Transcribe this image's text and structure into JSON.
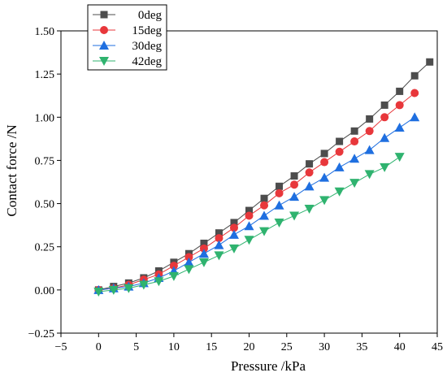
{
  "chart_data": {
    "type": "line",
    "xlabel": "Pressure /kPa",
    "ylabel": "Contact force /N",
    "xlim": [
      -5,
      45
    ],
    "ylim": [
      -0.25,
      1.5
    ],
    "xticks": [
      -5,
      0,
      5,
      10,
      15,
      20,
      25,
      30,
      35,
      40,
      45
    ],
    "yticks": [
      -0.25,
      0.0,
      0.25,
      0.5,
      0.75,
      1.0,
      1.25,
      1.5
    ],
    "ytick_labels": [
      "−0.25",
      "0.00",
      "0.25",
      "0.50",
      "0.75",
      "1.00",
      "1.25",
      "1.50"
    ],
    "xtick_labels": [
      "−5",
      "0",
      "5",
      "10",
      "15",
      "20",
      "25",
      "30",
      "35",
      "40",
      "45"
    ],
    "grid": false,
    "legend_position": "top-left",
    "series": [
      {
        "name": "0deg",
        "color": "#4d4d4d",
        "marker": "square",
        "x": [
          0,
          2,
          4,
          6,
          8,
          10,
          12,
          14,
          16,
          18,
          20,
          22,
          24,
          26,
          28,
          30,
          32,
          34,
          36,
          38,
          40,
          42,
          44
        ],
        "y": [
          0.0,
          0.02,
          0.04,
          0.07,
          0.11,
          0.16,
          0.21,
          0.27,
          0.33,
          0.39,
          0.46,
          0.53,
          0.6,
          0.66,
          0.73,
          0.79,
          0.86,
          0.92,
          0.99,
          1.07,
          1.15,
          1.24,
          1.32
        ]
      },
      {
        "name": "15deg",
        "color": "#e8373b",
        "marker": "circle",
        "x": [
          0,
          2,
          4,
          6,
          8,
          10,
          12,
          14,
          16,
          18,
          20,
          22,
          24,
          26,
          28,
          30,
          32,
          34,
          36,
          38,
          40,
          42
        ],
        "y": [
          0.0,
          0.01,
          0.03,
          0.06,
          0.09,
          0.14,
          0.19,
          0.24,
          0.3,
          0.36,
          0.43,
          0.49,
          0.56,
          0.61,
          0.68,
          0.74,
          0.8,
          0.86,
          0.92,
          1.0,
          1.07,
          1.14
        ]
      },
      {
        "name": "30deg",
        "color": "#1f6fe0",
        "marker": "triangle-up",
        "x": [
          0,
          2,
          4,
          6,
          8,
          10,
          12,
          14,
          16,
          18,
          20,
          22,
          24,
          26,
          28,
          30,
          32,
          34,
          36,
          38,
          40,
          42
        ],
        "y": [
          0.0,
          0.01,
          0.02,
          0.04,
          0.07,
          0.11,
          0.16,
          0.21,
          0.26,
          0.32,
          0.37,
          0.43,
          0.49,
          0.54,
          0.6,
          0.65,
          0.71,
          0.76,
          0.81,
          0.88,
          0.94,
          1.0
        ]
      },
      {
        "name": "42deg",
        "color": "#2fb36f",
        "marker": "triangle-down",
        "x": [
          0,
          2,
          4,
          6,
          8,
          10,
          12,
          14,
          16,
          18,
          20,
          22,
          24,
          26,
          28,
          30,
          32,
          34,
          36,
          38,
          40
        ],
        "y": [
          -0.01,
          0.0,
          0.01,
          0.03,
          0.05,
          0.08,
          0.12,
          0.16,
          0.2,
          0.24,
          0.29,
          0.34,
          0.39,
          0.43,
          0.47,
          0.52,
          0.57,
          0.62,
          0.67,
          0.71,
          0.77
        ]
      }
    ]
  }
}
